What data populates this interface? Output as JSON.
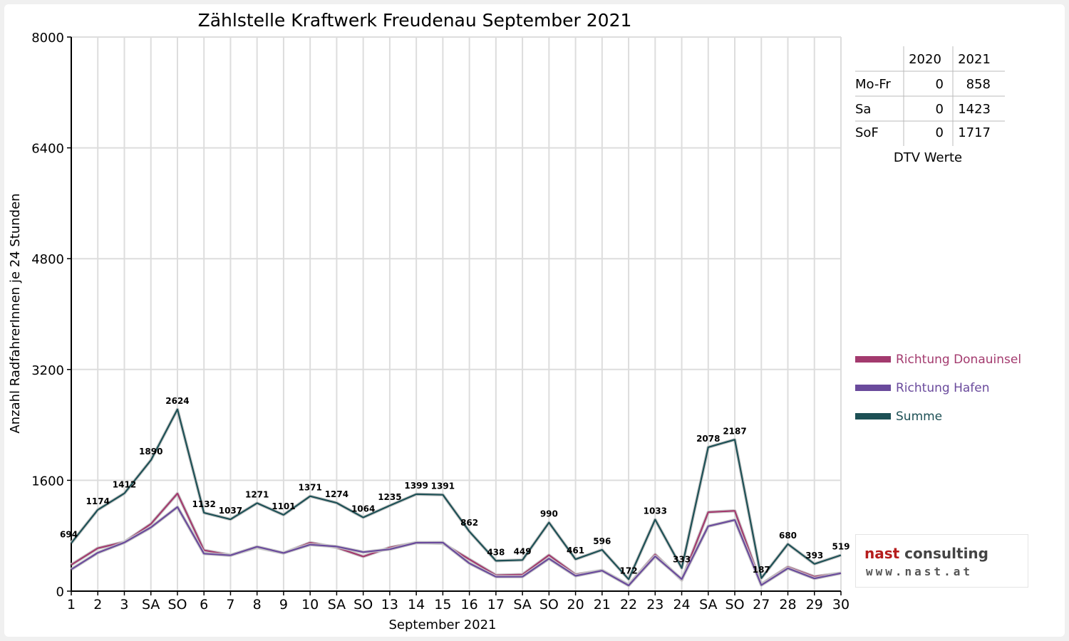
{
  "chart_data": {
    "type": "line",
    "title": "Zählstelle Kraftwerk Freudenau September 2021",
    "xlabel": "September 2021",
    "ylabel": "Anzahl RadfahrerInnen je 24 Stunden",
    "ylim": [
      0,
      8000
    ],
    "yticks": [
      "0",
      "1600",
      "3200",
      "4800",
      "6400",
      "8000"
    ],
    "grid": true,
    "legend_position": "right",
    "categories": [
      "1",
      "2",
      "3",
      "SA",
      "SO",
      "6",
      "7",
      "8",
      "9",
      "10",
      "SA",
      "SO",
      "13",
      "14",
      "15",
      "16",
      "17",
      "SA",
      "SO",
      "20",
      "21",
      "22",
      "23",
      "24",
      "SA",
      "SO",
      "27",
      "28",
      "29",
      "30"
    ],
    "weekend_colors": {
      "SA": "#000000",
      "SO": "#e00000"
    },
    "series": [
      {
        "name": "Richtung Donauinsel",
        "color": "#a33a6e",
        "values": [
          380,
          620,
          710,
          970,
          1410,
          590,
          520,
          630,
          550,
          700,
          630,
          500,
          630,
          700,
          690,
          460,
          230,
          240,
          520,
          240,
          300,
          90,
          530,
          160,
          1140,
          1160,
          100,
          350,
          210,
          260
        ]
      },
      {
        "name": "Richtung Hafen",
        "color": "#6a4a9c",
        "values": [
          314,
          554,
          702,
          920,
          1214,
          542,
          517,
          641,
          551,
          671,
          644,
          564,
          605,
          699,
          701,
          402,
          208,
          209,
          470,
          221,
          296,
          82,
          503,
          173,
          938,
          1027,
          87,
          330,
          183,
          259
        ]
      },
      {
        "name": "Summe",
        "color": "#1d5055",
        "values": [
          694,
          1174,
          1412,
          1890,
          2624,
          1132,
          1037,
          1271,
          1101,
          1371,
          1274,
          1064,
          1235,
          1399,
          1391,
          862,
          438,
          449,
          990,
          461,
          596,
          172,
          1033,
          333,
          2078,
          2187,
          187,
          680,
          393,
          519
        ]
      }
    ],
    "data_labels": [
      694,
      1174,
      1412,
      1890,
      2624,
      1132,
      1037,
      1271,
      1101,
      1371,
      1274,
      1064,
      1235,
      1399,
      1391,
      862,
      438,
      449,
      990,
      461,
      596,
      172,
      1033,
      333,
      2078,
      2187,
      187,
      680,
      393,
      519
    ]
  },
  "dtv_table": {
    "caption": "DTV Werte",
    "headers": [
      "",
      "2020",
      "2021"
    ],
    "rows": [
      {
        "label": "Mo-Fr",
        "v2020": "0",
        "v2021": "858"
      },
      {
        "label": "Sa",
        "v2020": "0",
        "v2021": "1423"
      },
      {
        "label": "SoF",
        "v2020": "0",
        "v2021": "1717"
      }
    ]
  },
  "logo": {
    "word1": "nast",
    "word2": "consulting",
    "url": "www.nast.at",
    "colors": {
      "brand_red": "#b51c1c",
      "brand_gray": "#444444"
    }
  }
}
